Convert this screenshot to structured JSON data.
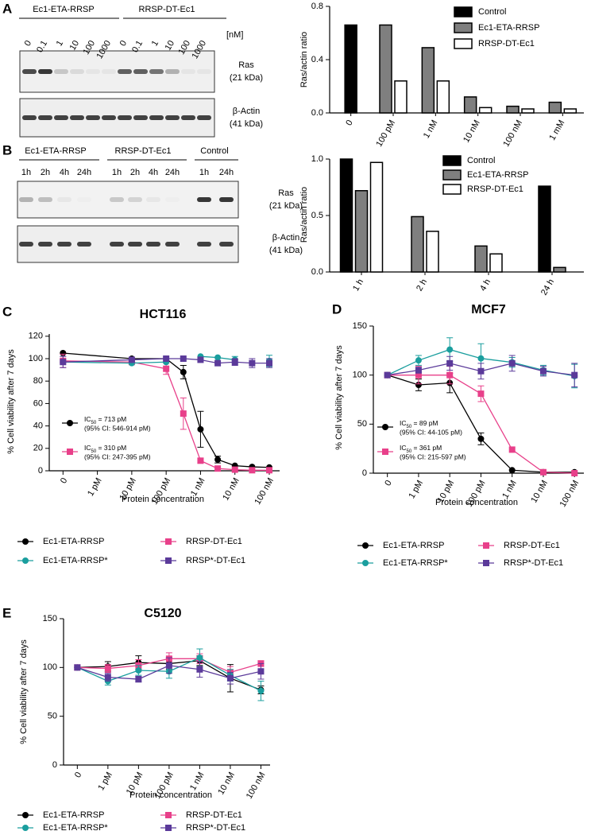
{
  "panels": [
    "A",
    "B",
    "C",
    "D",
    "E"
  ],
  "blots": [
    {
      "groups": [
        "Ec1-ETA-RRSP",
        "RRSP-DT-Ec1"
      ],
      "lanes": [
        "0",
        "0.1",
        "1",
        "10",
        "100",
        "1000",
        "0",
        "0.1",
        "1",
        "10",
        "100",
        "1000"
      ],
      "unit": "[nM]",
      "bands": [
        {
          "name": "Ras",
          "size": "(21 kDa)"
        },
        {
          "name": "β-Actin",
          "size": "(41 kDa)"
        }
      ]
    },
    {
      "groups": [
        "Ec1-ETA-RRSP",
        "RRSP-DT-Ec1",
        "Control"
      ],
      "lanes": [
        "1h",
        "2h",
        "4h",
        "24h",
        "1h",
        "2h",
        "4h",
        "24h",
        "1h",
        "24h"
      ],
      "bands": [
        {
          "name": "Ras",
          "size": "(21 kDa)"
        },
        {
          "name": "β-Actin",
          "size": "(41 kDa)"
        }
      ]
    }
  ],
  "chart_data": [
    {
      "type": "bar",
      "y_label": "Ras/actin ratio",
      "categories": [
        "0",
        "100 pM",
        "1 nM",
        "10 nM",
        "100 nM",
        "1 mM"
      ],
      "series": [
        {
          "name": "Control",
          "color": "#000000",
          "values": [
            0.66,
            null,
            null,
            null,
            null,
            null
          ]
        },
        {
          "name": "Ec1-ETA-RRSP",
          "color": "#7f7f7f",
          "values": [
            null,
            0.66,
            0.49,
            0.12,
            0.05,
            0.08
          ]
        },
        {
          "name": "RRSP-DT-Ec1",
          "color": "#ffffff",
          "values": [
            null,
            0.24,
            0.24,
            0.04,
            0.03,
            0.03
          ]
        }
      ],
      "ylim": [
        0,
        0.8
      ],
      "yticks": [
        {
          "value": 0,
          "label": "0.0"
        },
        0.4,
        0.8
      ],
      "grid": false
    },
    {
      "type": "bar",
      "y_label": "Ras/actin ratio",
      "categories": [
        "1 h",
        "2 h",
        "4 h",
        "24 h"
      ],
      "series": [
        {
          "name": "Control",
          "color": "#000000",
          "values": [
            1.0,
            null,
            null,
            0.76
          ]
        },
        {
          "name": "Ec1-ETA-RRSP",
          "color": "#7f7f7f",
          "values": [
            0.72,
            0.49,
            0.23,
            0.04
          ]
        },
        {
          "name": "RRSP-DT-Ec1",
          "color": "#ffffff",
          "values": [
            0.97,
            0.36,
            0.16,
            null
          ]
        }
      ],
      "ylim": [
        0,
        1.0
      ],
      "yticks": [
        {
          "value": 0,
          "label": "0.0"
        },
        0.5,
        {
          "value": 1,
          "label": "1.0"
        }
      ],
      "grid": false
    },
    {
      "type": "line",
      "title": "HCT116",
      "x_label": "Protein concentration",
      "y_label": "% Cell viability after 7 days",
      "x": [
        0,
        2,
        3,
        3.5,
        4,
        4.5,
        5,
        5.5,
        6
      ],
      "xlim": [
        -0.4,
        6.3
      ],
      "xticks": [
        0,
        {
          "value": 1,
          "label": "1 pM"
        },
        {
          "value": 2,
          "label": "10 pM"
        },
        {
          "value": 3,
          "label": "100 pM"
        },
        {
          "value": 4,
          "label": "1 nM"
        },
        {
          "value": 5,
          "label": "10 nM"
        },
        {
          "value": 6,
          "label": "100 nM"
        }
      ],
      "ylim": [
        0,
        122
      ],
      "yticks": [
        0,
        20,
        40,
        60,
        80,
        100,
        120
      ],
      "grid": false,
      "series": [
        {
          "name": "Ec1-ETA-RRSP",
          "color": "#000000",
          "marker": "circle",
          "values": [
            105,
            100,
            100,
            88,
            37,
            10,
            4.5,
            3.5,
            3
          ],
          "errors": [
            0,
            0,
            0,
            6,
            16,
            3,
            0,
            0,
            0
          ],
          "annotation": {
            "text": "IC",
            "sub": "50",
            "value": " = 713 pM",
            "ci": "(95% CI: 546-914 pM)"
          }
        },
        {
          "name": "RRSP-DT-Ec1",
          "color": "#e8408a",
          "marker": "square",
          "values": [
            98,
            97,
            91,
            51,
            9,
            2,
            1,
            0.5,
            0.5
          ],
          "errors": [
            6,
            0,
            5,
            14,
            2,
            0,
            0,
            0,
            0
          ],
          "annotation": {
            "text": "IC",
            "sub": "50",
            "value": " = 310 pM",
            "ci": "(95% CI: 247-395 pM)"
          }
        },
        {
          "name": "Ec1-ETA-RRSP*",
          "color": "#1a9e9e",
          "marker": "circle",
          "values": [
            97,
            96,
            97,
            null,
            102,
            101,
            99,
            null,
            98
          ],
          "errors": [
            0,
            0,
            0,
            null,
            0,
            0,
            3,
            null,
            5
          ]
        },
        {
          "name": "RRSP*-DT-Ec1",
          "color": "#5b3a9a",
          "marker": "square",
          "values": [
            97,
            99,
            100,
            100,
            99,
            96,
            97,
            96,
            96
          ],
          "errors": [
            5,
            0,
            0,
            0,
            0,
            0,
            3,
            4,
            4
          ]
        }
      ]
    },
    {
      "type": "line",
      "title": "MCF7",
      "x_label": "Protein concentration",
      "y_label": "% Cell viability after 7 days",
      "x": [
        0,
        1,
        2,
        3,
        4,
        5,
        6
      ],
      "xlim": [
        -0.45,
        6.3
      ],
      "xticks": [
        0,
        {
          "value": 1,
          "label": "1 pM"
        },
        {
          "value": 2,
          "label": "10 pM"
        },
        {
          "value": 3,
          "label": "100 pM"
        },
        {
          "value": 4,
          "label": "1 nM"
        },
        {
          "value": 5,
          "label": "10 nM"
        },
        {
          "value": 6,
          "label": "100 nM"
        }
      ],
      "ylim": [
        0,
        150
      ],
      "yticks": [
        0,
        50,
        100,
        150
      ],
      "grid": false,
      "series": [
        {
          "name": "Ec1-ETA-RRSP",
          "color": "#000000",
          "marker": "circle",
          "values": [
            100,
            90,
            92,
            35,
            3,
            1,
            1
          ],
          "errors": [
            0,
            6,
            10,
            6,
            0,
            0,
            0
          ],
          "annotation": {
            "text": "IC",
            "sub": "50",
            "value": " = 89 pM",
            "ci": "(95% CI: 44-105 pM)"
          }
        },
        {
          "name": "RRSP-DT-Ec1",
          "color": "#e8408a",
          "marker": "square",
          "values": [
            100,
            100,
            100,
            81,
            24,
            1,
            0
          ],
          "errors": [
            0,
            9,
            9,
            8,
            0,
            0,
            0
          ],
          "annotation": {
            "text": "IC",
            "sub": "50",
            "value": " = 361 pM",
            "ci": "(95% CI: 215-597 pM)"
          }
        },
        {
          "name": "Ec1-ETA-RRSP*",
          "color": "#1a9e9e",
          "marker": "circle",
          "values": [
            100,
            115,
            126,
            117,
            113,
            105,
            99
          ],
          "errors": [
            0,
            5,
            12,
            15,
            5,
            5,
            12
          ]
        },
        {
          "name": "RRSP*-DT-Ec1",
          "color": "#5b3a9a",
          "marker": "square",
          "values": [
            100,
            105,
            112,
            104,
            112,
            104,
            100
          ],
          "errors": [
            0,
            3,
            7,
            8,
            8,
            5,
            12
          ]
        }
      ]
    },
    {
      "type": "line",
      "title": "C5120",
      "x_label": "Protein concentration",
      "y_label": "% Cell viability after 7 days",
      "x": [
        0,
        1,
        2,
        3,
        4,
        5,
        6
      ],
      "xlim": [
        -0.45,
        6.3
      ],
      "xticks": [
        0,
        {
          "value": 1,
          "label": "1 pM"
        },
        {
          "value": 2,
          "label": "10 pM"
        },
        {
          "value": 3,
          "label": "100 pM"
        },
        {
          "value": 4,
          "label": "1 nM"
        },
        {
          "value": 5,
          "label": "10 nM"
        },
        {
          "value": 6,
          "label": "100 nM"
        }
      ],
      "ylim": [
        0,
        150
      ],
      "yticks": [
        0,
        50,
        100,
        150
      ],
      "grid": false,
      "series": [
        {
          "name": "Ec1-ETA-RRSP",
          "color": "#000000",
          "marker": "circle",
          "values": [
            100,
            101,
            105,
            104,
            107,
            89,
            77
          ],
          "errors": [
            0,
            5,
            7,
            6,
            5,
            14,
            4
          ]
        },
        {
          "name": "RRSP-DT-Ec1",
          "color": "#e8408a",
          "marker": "square",
          "values": [
            100,
            99,
            102,
            109,
            109,
            95,
            104
          ],
          "errors": [
            0,
            4,
            6,
            6,
            5,
            6,
            3
          ]
        },
        {
          "name": "Ec1-ETA-RRSP*",
          "color": "#1a9e9e",
          "marker": "circle",
          "values": [
            100,
            86,
            97,
            96,
            110,
            92,
            76
          ],
          "errors": [
            0,
            4,
            5,
            7,
            9,
            6,
            10
          ]
        },
        {
          "name": "RRSP*-DT-Ec1",
          "color": "#5b3a9a",
          "marker": "square",
          "values": [
            100,
            90,
            88,
            102,
            98,
            89,
            96
          ],
          "errors": [
            0,
            4,
            3,
            8,
            8,
            6,
            8
          ]
        }
      ]
    }
  ]
}
